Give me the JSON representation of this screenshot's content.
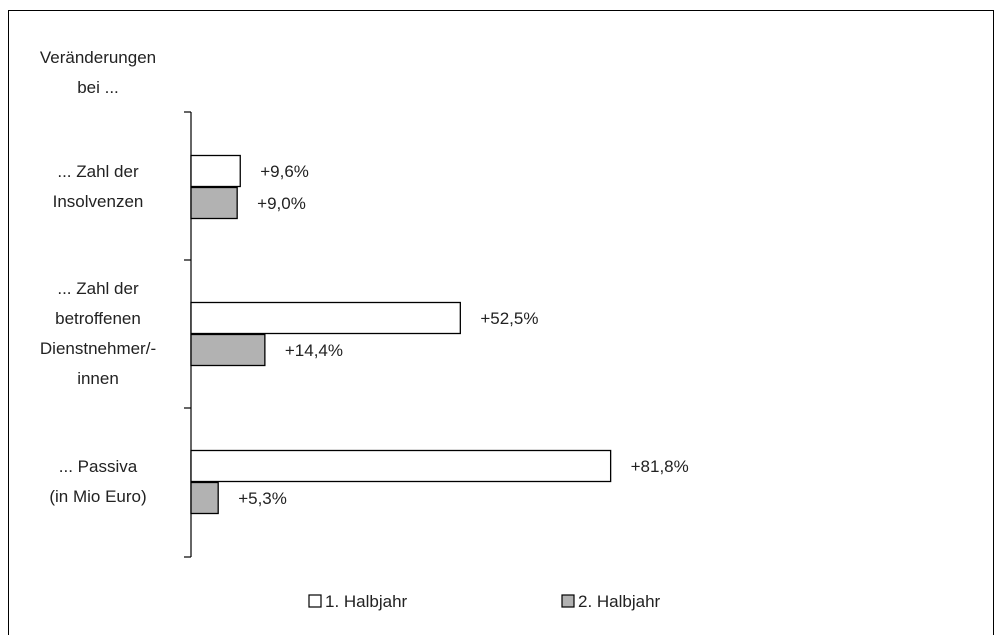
{
  "chart_data": {
    "type": "bar",
    "orientation": "horizontal",
    "category_header": "Veränderungen bei ...",
    "category_header_lines": [
      "Veränderungen",
      "bei ..."
    ],
    "categories": [
      "... Zahl der Insolvenzen",
      "... Zahl der betroffenen Dienstnehmer/-innen",
      "... Passiva (in Mio Euro)"
    ],
    "category_lines": [
      [
        "... Zahl der",
        "Insolvenzen"
      ],
      [
        "... Zahl der",
        "betroffenen",
        "Dienstnehmer/-",
        "innen"
      ],
      [
        "... Passiva",
        "(in Mio Euro)"
      ]
    ],
    "series": [
      {
        "name": "1. Halbjahr",
        "values": [
          9.6,
          52.5,
          81.8
        ],
        "labels": [
          "+9,6%",
          "+52,5%",
          "+81,8%"
        ],
        "color": "#ffffff"
      },
      {
        "name": "2. Halbjahr",
        "values": [
          9.0,
          14.4,
          5.3
        ],
        "labels": [
          "+9,0%",
          "+14,4%",
          "+5,3%"
        ],
        "color": "#b2b2b2"
      }
    ],
    "xlim": [
      0,
      100
    ],
    "grid": false,
    "legend_position": "bottom"
  }
}
